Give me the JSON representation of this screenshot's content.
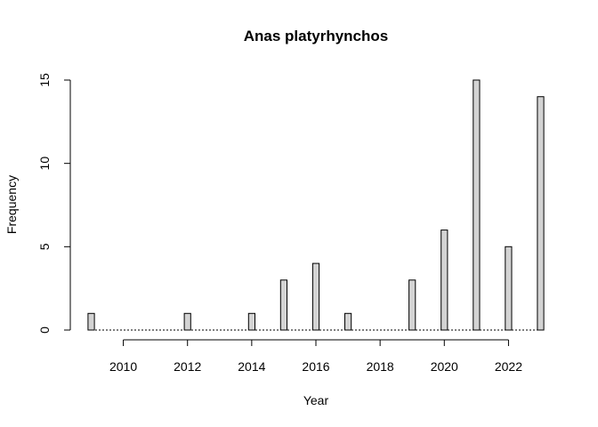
{
  "chart_data": {
    "type": "bar",
    "title": "Anas platyrhynchos",
    "xlabel": "Year",
    "ylabel": "Frequency",
    "x": [
      2009,
      2010,
      2011,
      2012,
      2013,
      2014,
      2015,
      2016,
      2017,
      2018,
      2019,
      2020,
      2021,
      2022,
      2023
    ],
    "values": [
      1,
      0,
      0,
      1,
      0,
      1,
      3,
      4,
      1,
      0,
      3,
      6,
      15,
      5,
      14
    ],
    "x_ticks": [
      2010,
      2012,
      2014,
      2016,
      2018,
      2020,
      2022
    ],
    "y_ticks": [
      0,
      5,
      10,
      15
    ],
    "ylim": [
      0,
      15
    ],
    "grid": false,
    "bar_color": "#d3d3d3"
  }
}
